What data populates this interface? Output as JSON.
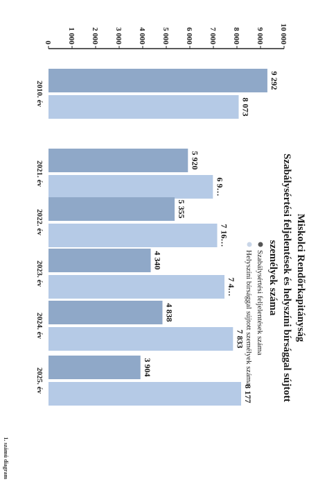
{
  "chart_data": {
    "type": "bar",
    "title_lines": [
      "Miskolci Rendőrkapitányság",
      "Szabálysértési feljelentések és helyszíni bírsággal sújtott",
      "személyek száma"
    ],
    "categories": [
      "2010. év",
      "2021. év",
      "2022. év",
      "2023. év",
      "2024. év",
      "2025. év"
    ],
    "series": [
      {
        "name": "Szabálysértési feljelentések száma",
        "values": [
          9292,
          5920,
          5355,
          4340,
          4838,
          3904
        ],
        "color": "#8fa8c8"
      },
      {
        "name": "Helyszíni bírsággal sújtott személyek száma",
        "values": [
          8073,
          6980,
          7162,
          7470,
          7833,
          8177
        ],
        "color": "#b5cae6"
      }
    ],
    "data_labels": [
      [
        "9 292",
        "5 920",
        "5 355",
        "4 340",
        "4 838",
        "3 904"
      ],
      [
        "8 073",
        "6 9…",
        "7 16…",
        "7 4…",
        "7 833",
        "8 177"
      ]
    ],
    "ylim": [
      0,
      10000
    ],
    "yticks": [
      0,
      1000,
      2000,
      3000,
      4000,
      5000,
      6000,
      7000,
      8000,
      9000,
      10000
    ],
    "ytick_labels": [
      "0",
      "1 000",
      "2 000",
      "3 000",
      "4 000",
      "5 000",
      "6 000",
      "7 000",
      "8 000",
      "9 000",
      "10 000"
    ],
    "grid": false,
    "legend_position": "top",
    "caption": "1. számú diagram"
  }
}
